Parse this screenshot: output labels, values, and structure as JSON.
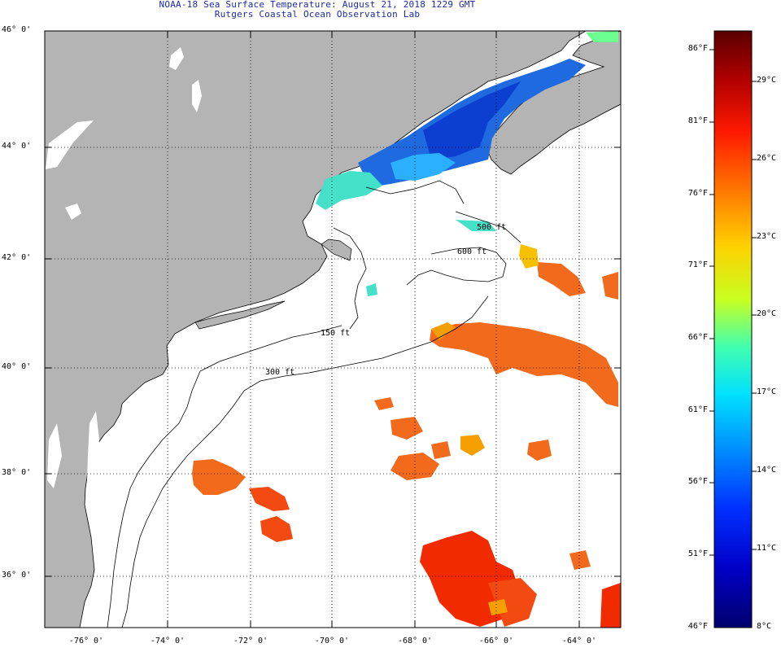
{
  "header": {
    "line1": "NOAA-18 Sea Surface Temperature:  August 21, 2018 1229 GMT",
    "line2": "Rutgers Coastal Ocean Observation Lab"
  },
  "map": {
    "lat_labels": [
      "46° 0'",
      "44° 0'",
      "42° 0'",
      "40° 0'",
      "38° 0'",
      "36° 0'"
    ],
    "lon_labels": [
      "-76° 0'",
      "-74° 0'",
      "-72° 0'",
      "-70° 0'",
      "-68° 0'",
      "-66° 0'",
      "-64° 0'"
    ],
    "contours": {
      "c500": "500 ft",
      "c600": "600 ft",
      "c150": "150 ft",
      "c300": "300 ft"
    },
    "colors": {
      "land": "#b4b4b4",
      "ocean_nodata": "#ffffff",
      "grid": "#000000",
      "warm": "#f26a1c",
      "cool": "#1f6ae0",
      "mid": "#45e0c8"
    }
  },
  "colorbar": {
    "fahrenheit": [
      "86°F",
      "81°F",
      "76°F",
      "71°F",
      "66°F",
      "61°F",
      "56°F",
      "51°F",
      "46°F"
    ],
    "celsius": [
      "29°C",
      "26°C",
      "23°C",
      "20°C",
      "17°C",
      "14°C",
      "11°C",
      "8°C"
    ],
    "gradient": [
      "#5a0000",
      "#b00000",
      "#ff1a00",
      "#ff7a00",
      "#ffd000",
      "#c8ff20",
      "#40ffb0",
      "#00e0ff",
      "#0090ff",
      "#0030ff",
      "#0000c8",
      "#00006e"
    ]
  }
}
